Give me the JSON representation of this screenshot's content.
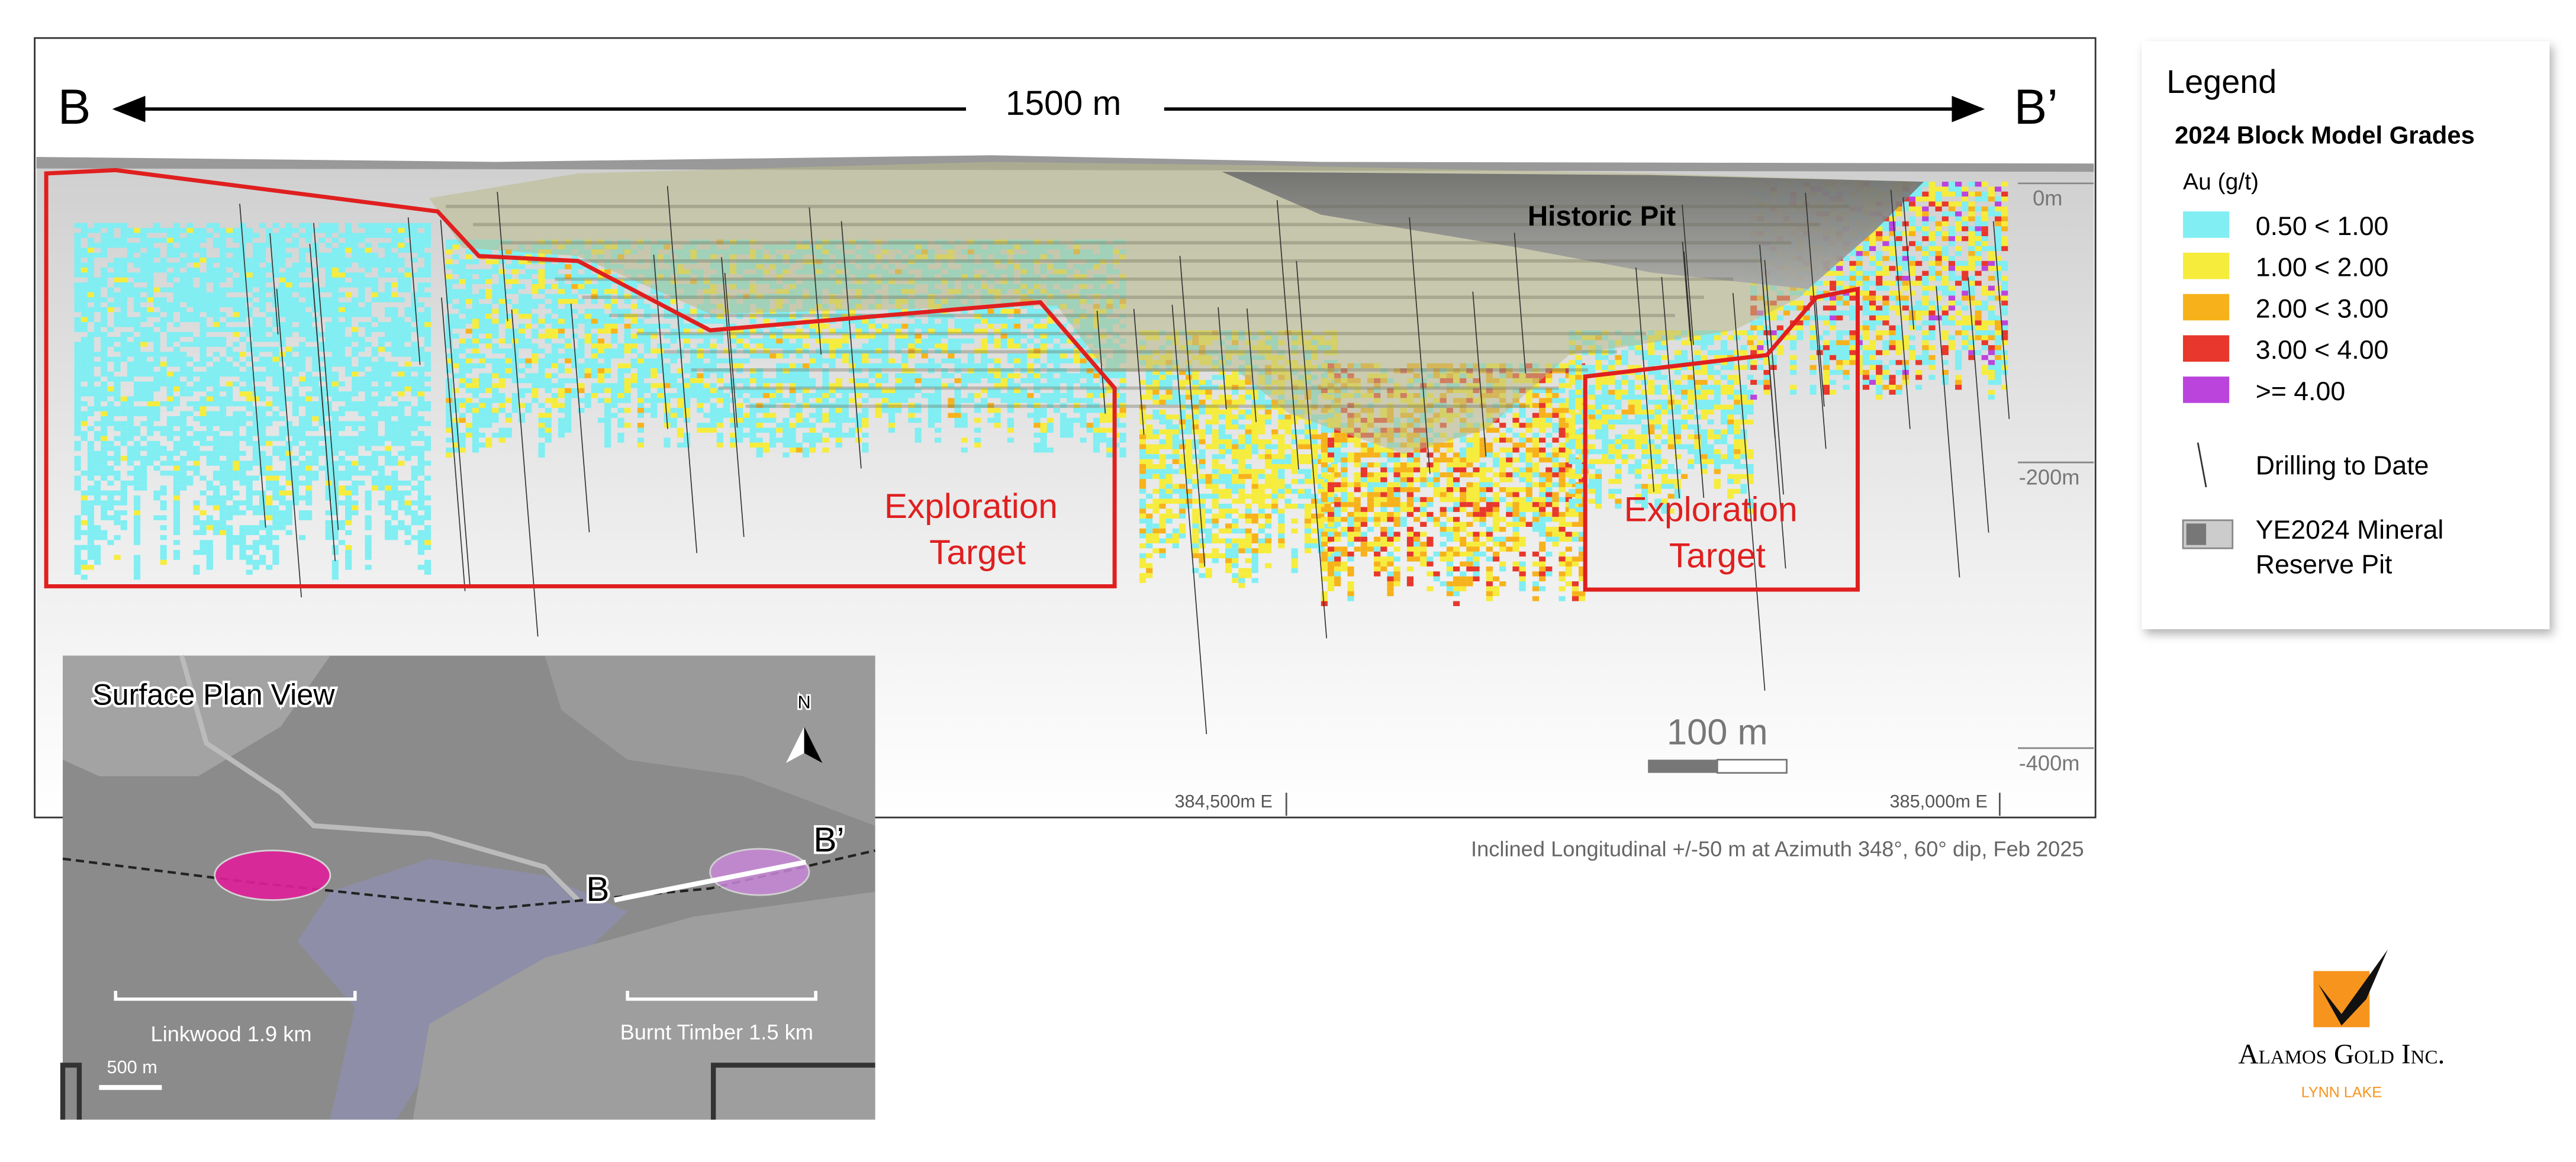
{
  "section": {
    "left_label": "B",
    "length_label": "1500 m",
    "right_label": "B’",
    "pit_label": "Historic Pit",
    "targets": [
      [
        "Exploration",
        "Target"
      ],
      [
        "Exploration",
        "Target"
      ]
    ],
    "elevations": [
      "0m",
      "-200m",
      "-400m"
    ],
    "scale_label": "100 m",
    "eastings": [
      "384,500m E",
      "385,000m E"
    ],
    "caption": "Inclined Longitudinal +/-50 m at Azimuth 348°, 60° dip, Feb 2025"
  },
  "inset": {
    "title": "Surface Plan View",
    "north": "N",
    "b": "B",
    "b_prime": "B’",
    "linkwood": "Linkwood 1.9 km",
    "burnt_timber": "Burnt Timber 1.5 km",
    "scale": "500 m"
  },
  "legend": {
    "title": "Legend",
    "subtitle": "2024 Block Model Grades",
    "unit": "Au (g/t)",
    "grades": [
      {
        "label": "0.50 < 1.00",
        "color": "#80eef2"
      },
      {
        "label": "1.00 < 2.00",
        "color": "#f6ec3c"
      },
      {
        "label": "2.00 < 3.00",
        "color": "#f7b21b"
      },
      {
        "label": "3.00 < 4.00",
        "color": "#e8372c"
      },
      {
        "label": ">= 4.00",
        "color": "#bb44dd"
      }
    ],
    "drilling": "Drilling to Date",
    "pit": [
      "YE2024 Mineral",
      "Reserve Pit"
    ]
  },
  "logo": {
    "company": "Alamos Gold Inc.",
    "project": "LYNN LAKE"
  }
}
